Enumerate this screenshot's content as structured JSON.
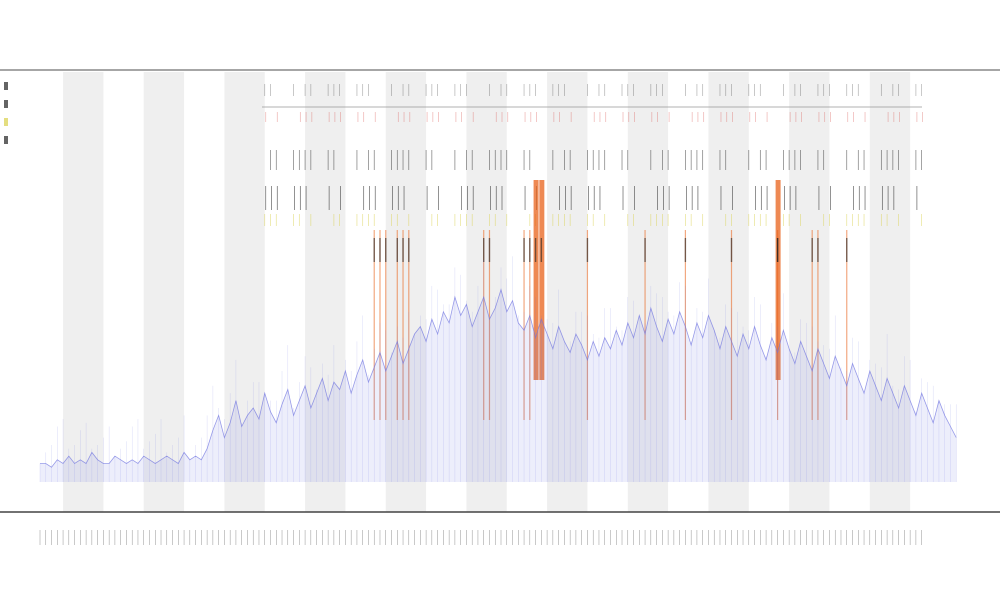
{
  "title": "",
  "subtitle_1": "",
  "subtitle_2": "",
  "x_caption": "",
  "colors": {
    "coverage": "#6f74e0",
    "highlight": "#e8621a",
    "mark": "#222222",
    "yellow_mark": "#d9d04a",
    "red_mark": "#d9534f",
    "band": "#efefef",
    "axis": "#444444"
  },
  "chart_data": {
    "type": "area",
    "title": "",
    "xlabel": "",
    "ylabel": "",
    "x_range": [
      0,
      160
    ],
    "ylim": [
      0,
      100
    ],
    "grid": false,
    "legend": "top-left",
    "series": [
      {
        "values": [
          5,
          5,
          4,
          6,
          5,
          7,
          5,
          6,
          5,
          8,
          6,
          5,
          5,
          7,
          6,
          5,
          6,
          5,
          7,
          6,
          5,
          6,
          7,
          6,
          5,
          8,
          6,
          7,
          6,
          9,
          14,
          18,
          12,
          16,
          22,
          15,
          18,
          20,
          17,
          24,
          19,
          16,
          21,
          25,
          18,
          22,
          26,
          20,
          24,
          28,
          22,
          27,
          25,
          30,
          24,
          29,
          33,
          27,
          31,
          35,
          30,
          34,
          38,
          32,
          36,
          40,
          42,
          38,
          44,
          40,
          46,
          43,
          50,
          45,
          48,
          42,
          46,
          50,
          44,
          47,
          52,
          46,
          49,
          43,
          41,
          45,
          39,
          44,
          40,
          36,
          42,
          38,
          35,
          40,
          37,
          33,
          38,
          34,
          39,
          36,
          41,
          37,
          43,
          39,
          45,
          40,
          47,
          42,
          38,
          44,
          40,
          46,
          42,
          37,
          43,
          39,
          45,
          41,
          36,
          42,
          38,
          34,
          40,
          36,
          42,
          37,
          33,
          39,
          35,
          41,
          36,
          32,
          38,
          34,
          30,
          36,
          32,
          28,
          34,
          30,
          26,
          32,
          28,
          24,
          30,
          26,
          22,
          28,
          24,
          20,
          26,
          22,
          18,
          24,
          20,
          16,
          22,
          18,
          15,
          12
        ]
      }
    ],
    "highlight_columns": [
      58,
      59,
      60,
      62,
      63,
      64,
      77,
      78,
      84,
      85,
      95,
      105,
      112,
      120,
      128,
      134,
      135,
      140
    ],
    "strong_highlight_columns": [
      86,
      87,
      128
    ],
    "shaded_band_columns": [
      [
        4,
        11
      ],
      [
        18,
        25
      ],
      [
        32,
        39
      ],
      [
        46,
        53
      ],
      [
        60,
        67
      ],
      [
        74,
        81
      ],
      [
        88,
        95
      ],
      [
        102,
        109
      ],
      [
        116,
        123
      ],
      [
        130,
        137
      ],
      [
        144,
        151
      ]
    ]
  },
  "legend_entries": [],
  "x_tick_labels": []
}
